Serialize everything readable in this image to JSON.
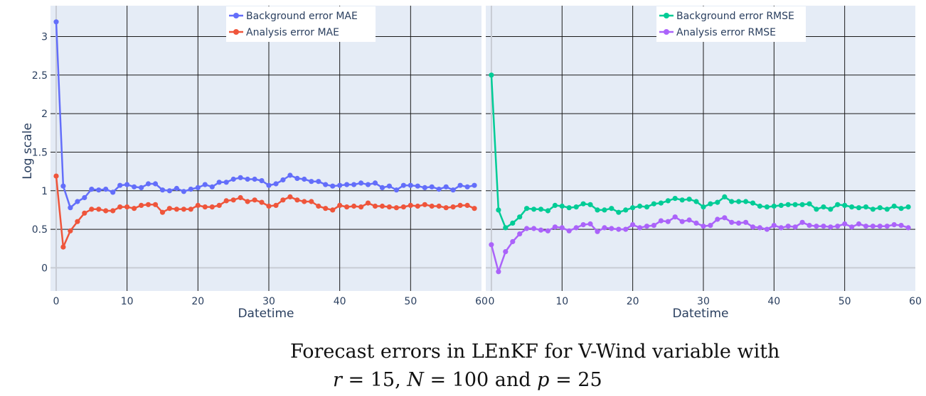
{
  "caption": {
    "line1": "Forecast errors in LEnKF for V-Wind variable with",
    "r_label": "r",
    "r_value": "= 15,",
    "n_label": "N",
    "n_value": "= 100 and",
    "p_label": "p",
    "p_value": "= 25"
  },
  "colors": {
    "plot_bg": "#e5ecf6",
    "grid": "#1a1a1a",
    "zero_line": "#c8ccd4",
    "text": "#2a3f5f",
    "bg_mae": "#636efa",
    "an_mae": "#ef553b",
    "bg_rmse": "#00cc96",
    "an_rmse": "#ab63fa"
  },
  "chart_data": [
    {
      "type": "line",
      "xlabel": "Datetime",
      "ylabel": "Log scale",
      "xlim": [
        -0.8,
        60
      ],
      "ylim": [
        -0.3,
        3.4
      ],
      "xticks": [
        0,
        10,
        20,
        30,
        40,
        50,
        60
      ],
      "yticks": [
        0,
        0.5,
        1,
        1.5,
        2,
        2.5,
        3
      ],
      "ytick_labels": [
        "0",
        "0.5",
        "1",
        "1.5",
        "2",
        "2.5",
        "3"
      ],
      "grid": true,
      "legend_position": "top-right",
      "series": [
        {
          "name": "Background error MAE",
          "color": "#636efa",
          "x": [
            0,
            1,
            2,
            3,
            4,
            5,
            6,
            7,
            8,
            9,
            10,
            11,
            12,
            13,
            14,
            15,
            16,
            17,
            18,
            19,
            20,
            21,
            22,
            23,
            24,
            25,
            26,
            27,
            28,
            29,
            30,
            31,
            32,
            33,
            34,
            35,
            36,
            37,
            38,
            39,
            40,
            41,
            42,
            43,
            44,
            45,
            46,
            47,
            48,
            49,
            50,
            51,
            52,
            53,
            54,
            55,
            56,
            57,
            58,
            59
          ],
          "values": [
            3.19,
            1.06,
            0.78,
            0.86,
            0.91,
            1.02,
            1.01,
            1.02,
            0.98,
            1.07,
            1.08,
            1.05,
            1.04,
            1.09,
            1.09,
            1.01,
            1.0,
            1.03,
            0.99,
            1.02,
            1.04,
            1.08,
            1.05,
            1.11,
            1.11,
            1.15,
            1.17,
            1.15,
            1.15,
            1.13,
            1.07,
            1.09,
            1.14,
            1.2,
            1.16,
            1.15,
            1.12,
            1.12,
            1.08,
            1.06,
            1.07,
            1.08,
            1.08,
            1.1,
            1.08,
            1.1,
            1.04,
            1.06,
            1.01,
            1.07,
            1.07,
            1.06,
            1.04,
            1.05,
            1.02,
            1.05,
            1.01,
            1.07,
            1.05,
            1.07
          ]
        },
        {
          "name": "Analysis error MAE",
          "color": "#ef553b",
          "x": [
            0,
            1,
            2,
            3,
            4,
            5,
            6,
            7,
            8,
            9,
            10,
            11,
            12,
            13,
            14,
            15,
            16,
            17,
            18,
            19,
            20,
            21,
            22,
            23,
            24,
            25,
            26,
            27,
            28,
            29,
            30,
            31,
            32,
            33,
            34,
            35,
            36,
            37,
            38,
            39,
            40,
            41,
            42,
            43,
            44,
            45,
            46,
            47,
            48,
            49,
            50,
            51,
            52,
            53,
            54,
            55,
            56,
            57,
            58,
            59
          ],
          "values": [
            1.19,
            0.27,
            0.48,
            0.6,
            0.71,
            0.76,
            0.76,
            0.74,
            0.74,
            0.79,
            0.79,
            0.77,
            0.81,
            0.82,
            0.82,
            0.72,
            0.77,
            0.76,
            0.76,
            0.76,
            0.81,
            0.79,
            0.79,
            0.81,
            0.87,
            0.88,
            0.91,
            0.86,
            0.88,
            0.85,
            0.8,
            0.81,
            0.88,
            0.92,
            0.88,
            0.86,
            0.86,
            0.8,
            0.77,
            0.75,
            0.81,
            0.79,
            0.8,
            0.79,
            0.84,
            0.8,
            0.8,
            0.79,
            0.78,
            0.79,
            0.81,
            0.8,
            0.82,
            0.8,
            0.8,
            0.78,
            0.79,
            0.81,
            0.81,
            0.77
          ]
        }
      ]
    },
    {
      "type": "line",
      "xlabel": "Datetime",
      "ylabel": "",
      "xlim": [
        -0.8,
        60
      ],
      "ylim": [
        -0.3,
        3.4
      ],
      "xticks": [
        0,
        10,
        20,
        30,
        40,
        50,
        60
      ],
      "yticks": [
        0,
        0.5,
        1,
        1.5,
        2,
        2.5,
        3
      ],
      "ytick_labels": [],
      "grid": true,
      "legend_position": "top-right",
      "series": [
        {
          "name": "Background error RMSE",
          "color": "#00cc96",
          "x": [
            0,
            1,
            2,
            3,
            4,
            5,
            6,
            7,
            8,
            9,
            10,
            11,
            12,
            13,
            14,
            15,
            16,
            17,
            18,
            19,
            20,
            21,
            22,
            23,
            24,
            25,
            26,
            27,
            28,
            29,
            30,
            31,
            32,
            33,
            34,
            35,
            36,
            37,
            38,
            39,
            40,
            41,
            42,
            43,
            44,
            45,
            46,
            47,
            48,
            49,
            50,
            51,
            52,
            53,
            54,
            55,
            56,
            57,
            58,
            59
          ],
          "values": [
            2.5,
            0.75,
            0.52,
            0.58,
            0.66,
            0.77,
            0.76,
            0.76,
            0.74,
            0.81,
            0.8,
            0.78,
            0.79,
            0.83,
            0.82,
            0.75,
            0.75,
            0.77,
            0.72,
            0.75,
            0.78,
            0.8,
            0.79,
            0.83,
            0.84,
            0.87,
            0.9,
            0.88,
            0.89,
            0.86,
            0.79,
            0.83,
            0.85,
            0.92,
            0.86,
            0.86,
            0.86,
            0.84,
            0.8,
            0.79,
            0.8,
            0.81,
            0.82,
            0.82,
            0.82,
            0.83,
            0.76,
            0.79,
            0.76,
            0.82,
            0.81,
            0.79,
            0.78,
            0.79,
            0.76,
            0.78,
            0.76,
            0.8,
            0.77,
            0.79
          ]
        },
        {
          "name": "Analysis error RMSE",
          "color": "#ab63fa",
          "x": [
            0,
            1,
            2,
            3,
            4,
            5,
            6,
            7,
            8,
            9,
            10,
            11,
            12,
            13,
            14,
            15,
            16,
            17,
            18,
            19,
            20,
            21,
            22,
            23,
            24,
            25,
            26,
            27,
            28,
            29,
            30,
            31,
            32,
            33,
            34,
            35,
            36,
            37,
            38,
            39,
            40,
            41,
            42,
            43,
            44,
            45,
            46,
            47,
            48,
            49,
            50,
            51,
            52,
            53,
            54,
            55,
            56,
            57,
            58,
            59
          ],
          "values": [
            0.3,
            -0.05,
            0.21,
            0.34,
            0.44,
            0.51,
            0.51,
            0.49,
            0.48,
            0.53,
            0.52,
            0.48,
            0.52,
            0.56,
            0.57,
            0.47,
            0.52,
            0.51,
            0.5,
            0.5,
            0.56,
            0.52,
            0.54,
            0.55,
            0.61,
            0.6,
            0.66,
            0.6,
            0.62,
            0.58,
            0.54,
            0.55,
            0.63,
            0.65,
            0.59,
            0.58,
            0.59,
            0.53,
            0.52,
            0.5,
            0.55,
            0.52,
            0.54,
            0.53,
            0.59,
            0.55,
            0.54,
            0.54,
            0.53,
            0.54,
            0.57,
            0.53,
            0.57,
            0.54,
            0.54,
            0.54,
            0.54,
            0.56,
            0.55,
            0.52
          ]
        }
      ]
    }
  ]
}
